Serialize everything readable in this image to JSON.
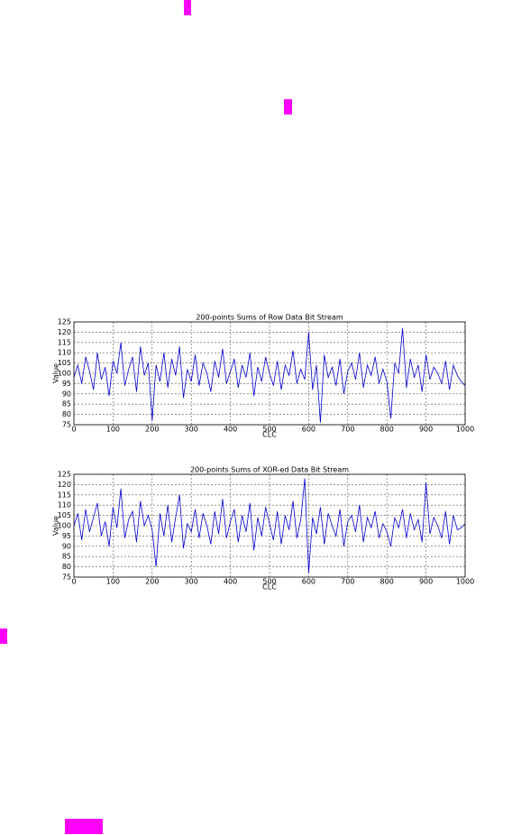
{
  "chart_data": [
    {
      "type": "line",
      "title": "200-points Sums of Row Data Bit Stream",
      "xlabel": "CLC",
      "ylabel": "Value",
      "xlim": [
        0,
        1000
      ],
      "ylim": [
        75,
        125
      ],
      "xticks": [
        0,
        100,
        200,
        300,
        400,
        500,
        600,
        700,
        800,
        900,
        1000
      ],
      "yticks": [
        75,
        80,
        85,
        90,
        95,
        100,
        105,
        110,
        115,
        120,
        125
      ],
      "grid": true,
      "x": [
        0,
        10,
        20,
        30,
        40,
        50,
        60,
        70,
        80,
        90,
        100,
        110,
        120,
        130,
        140,
        150,
        160,
        170,
        180,
        190,
        200,
        210,
        220,
        230,
        240,
        250,
        260,
        270,
        280,
        290,
        300,
        310,
        320,
        330,
        340,
        350,
        360,
        370,
        380,
        390,
        400,
        410,
        420,
        430,
        440,
        450,
        460,
        470,
        480,
        490,
        500,
        510,
        520,
        530,
        540,
        550,
        560,
        570,
        580,
        590,
        600,
        610,
        620,
        630,
        640,
        650,
        660,
        670,
        680,
        690,
        700,
        710,
        720,
        730,
        740,
        750,
        760,
        770,
        780,
        790,
        800,
        810,
        820,
        830,
        840,
        850,
        860,
        870,
        880,
        890,
        900,
        910,
        920,
        930,
        940,
        950,
        960,
        970,
        980,
        990,
        1000
      ],
      "series": [
        {
          "color": "#0000d0",
          "values": [
            98,
            104,
            95,
            108,
            101,
            92,
            110,
            97,
            103,
            89,
            106,
            100,
            115,
            94,
            102,
            108,
            91,
            113,
            99,
            105,
            77,
            104,
            96,
            110,
            93,
            107,
            99,
            113,
            88,
            102,
            96,
            109,
            94,
            105,
            100,
            91,
            106,
            98,
            112,
            95,
            101,
            107,
            93,
            104,
            98,
            110,
            89,
            103,
            96,
            108,
            100,
            94,
            106,
            92,
            104,
            99,
            111,
            95,
            102,
            97,
            120,
            92,
            104,
            76,
            109,
            98,
            103,
            94,
            107,
            90,
            101,
            105,
            97,
            110,
            93,
            104,
            99,
            108,
            95,
            102,
            96,
            78,
            105,
            100,
            122,
            93,
            107,
            98,
            104,
            91,
            109,
            97,
            103,
            100,
            95,
            106,
            92,
            104,
            99,
            96,
            94
          ]
        }
      ]
    },
    {
      "type": "line",
      "title": "200-points Sums of XOR-ed Data Bit Stream",
      "xlabel": "CLC",
      "ylabel": "Value",
      "xlim": [
        0,
        1000
      ],
      "ylim": [
        75,
        125
      ],
      "xticks": [
        0,
        100,
        200,
        300,
        400,
        500,
        600,
        700,
        800,
        900,
        1000
      ],
      "yticks": [
        75,
        80,
        85,
        90,
        95,
        100,
        105,
        110,
        115,
        120,
        125
      ],
      "grid": true,
      "x": [
        0,
        10,
        20,
        30,
        40,
        50,
        60,
        70,
        80,
        90,
        100,
        110,
        120,
        130,
        140,
        150,
        160,
        170,
        180,
        190,
        200,
        210,
        220,
        230,
        240,
        250,
        260,
        270,
        280,
        290,
        300,
        310,
        320,
        330,
        340,
        350,
        360,
        370,
        380,
        390,
        400,
        410,
        420,
        430,
        440,
        450,
        460,
        470,
        480,
        490,
        500,
        510,
        520,
        530,
        540,
        550,
        560,
        570,
        580,
        590,
        600,
        610,
        620,
        630,
        640,
        650,
        660,
        670,
        680,
        690,
        700,
        710,
        720,
        730,
        740,
        750,
        760,
        770,
        780,
        790,
        800,
        810,
        820,
        830,
        840,
        850,
        860,
        870,
        880,
        890,
        900,
        910,
        920,
        930,
        940,
        950,
        960,
        970,
        980,
        990,
        1000
      ],
      "series": [
        {
          "color": "#0000d0",
          "values": [
            100,
            106,
            93,
            108,
            97,
            104,
            111,
            95,
            102,
            90,
            109,
            99,
            118,
            94,
            103,
            107,
            92,
            112,
            100,
            105,
            98,
            80,
            106,
            95,
            110,
            92,
            104,
            115,
            89,
            101,
            97,
            108,
            94,
            106,
            100,
            91,
            107,
            96,
            113,
            94,
            102,
            108,
            92,
            105,
            97,
            111,
            88,
            104,
            95,
            109,
            101,
            93,
            107,
            91,
            105,
            98,
            112,
            94,
            103,
            123,
            77,
            104,
            96,
            109,
            91,
            106,
            100,
            95,
            108,
            90,
            102,
            105,
            97,
            110,
            92,
            104,
            99,
            107,
            94,
            101,
            97,
            90,
            104,
            99,
            108,
            94,
            106,
            98,
            103,
            92,
            121,
            96,
            104,
            100,
            94,
            107,
            91,
            105,
            98,
            99,
            101
          ]
        }
      ]
    }
  ]
}
